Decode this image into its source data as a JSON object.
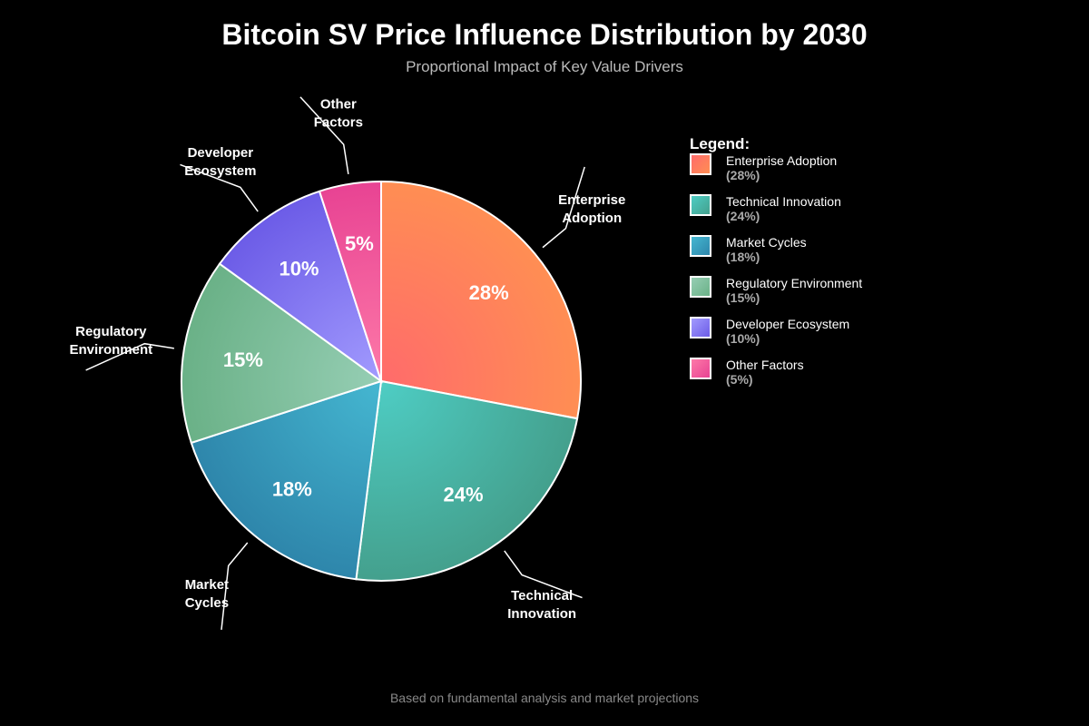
{
  "chart_data": {
    "type": "pie",
    "title": "Bitcoin SV Price Influence Distribution by 2030",
    "subtitle": "Proportional Impact of Key Value Drivers",
    "footer": "Based on fundamental analysis and market projections",
    "legend_title": "Legend:",
    "legend_position": "right",
    "slices": [
      {
        "label": "Enterprise Adoption",
        "label_lines": [
          "Enterprise",
          "Adoption"
        ],
        "value": 28,
        "pct": "28%",
        "legend_pct": "(28%)",
        "colors": [
          "#ff6b6b",
          "#ff8e53"
        ]
      },
      {
        "label": "Technical Innovation",
        "label_lines": [
          "Technical",
          "Innovation"
        ],
        "value": 24,
        "pct": "24%",
        "legend_pct": "(24%)",
        "colors": [
          "#4ecdc4",
          "#44a08d"
        ]
      },
      {
        "label": "Market Cycles",
        "label_lines": [
          "Market",
          "Cycles"
        ],
        "value": 18,
        "pct": "18%",
        "legend_pct": "(18%)",
        "colors": [
          "#45b7d1",
          "#2e86ab"
        ]
      },
      {
        "label": "Regulatory Environment",
        "label_lines": [
          "Regulatory",
          "Environment"
        ],
        "value": 15,
        "pct": "15%",
        "legend_pct": "(15%)",
        "colors": [
          "#96ceb4",
          "#6ab187"
        ]
      },
      {
        "label": "Developer Ecosystem",
        "label_lines": [
          "Developer",
          "Ecosystem"
        ],
        "value": 10,
        "pct": "10%",
        "legend_pct": "(10%)",
        "colors": [
          "#a29bfe",
          "#6c5ce7"
        ]
      },
      {
        "label": "Other Factors",
        "label_lines": [
          "Other",
          "Factors"
        ],
        "value": 5,
        "pct": "5%",
        "legend_pct": "(5%)",
        "colors": [
          "#fd79a8",
          "#e84393"
        ]
      }
    ]
  }
}
